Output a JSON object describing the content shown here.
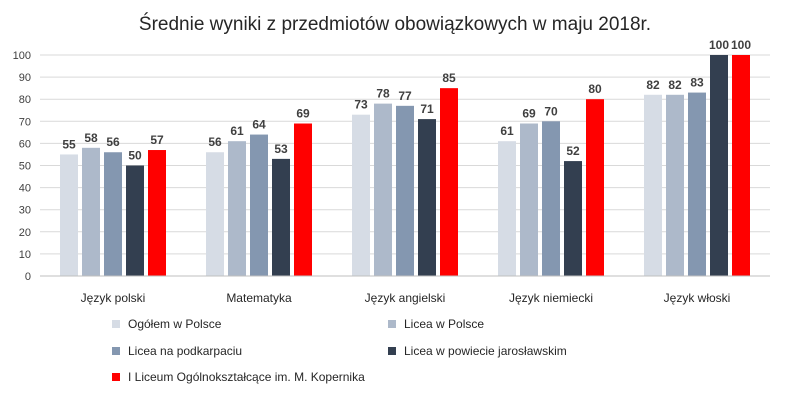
{
  "chart_data": {
    "type": "bar",
    "title": "Średnie wyniki z przedmiotów obowiązkowych w maju 2018r.",
    "xlabel": "",
    "ylabel": "",
    "ylim": [
      0,
      100
    ],
    "yticks": [
      0,
      10,
      20,
      30,
      40,
      50,
      60,
      70,
      80,
      90,
      100
    ],
    "grid": true,
    "legend_position": "bottom",
    "categories": [
      "Język polski",
      "Matematyka",
      "Język angielski",
      "Język niemiecki",
      "Język włoski"
    ],
    "series": [
      {
        "name": "Ogółem w Polsce",
        "color": "#d6dce5",
        "values": [
          55,
          56,
          73,
          61,
          82
        ]
      },
      {
        "name": "Licea w Polsce",
        "color": "#adb9ca",
        "values": [
          58,
          61,
          78,
          69,
          82
        ]
      },
      {
        "name": "Licea na podkarpaciu",
        "color": "#8497b0",
        "values": [
          56,
          64,
          77,
          70,
          83
        ]
      },
      {
        "name": "Licea w powiecie jarosławskim",
        "color": "#333f50",
        "values": [
          50,
          53,
          71,
          52,
          100
        ]
      },
      {
        "name": "I Liceum Ogólnokształcące im. M. Kopernika",
        "color": "#ff0000",
        "values": [
          57,
          69,
          85,
          80,
          100
        ]
      }
    ]
  }
}
